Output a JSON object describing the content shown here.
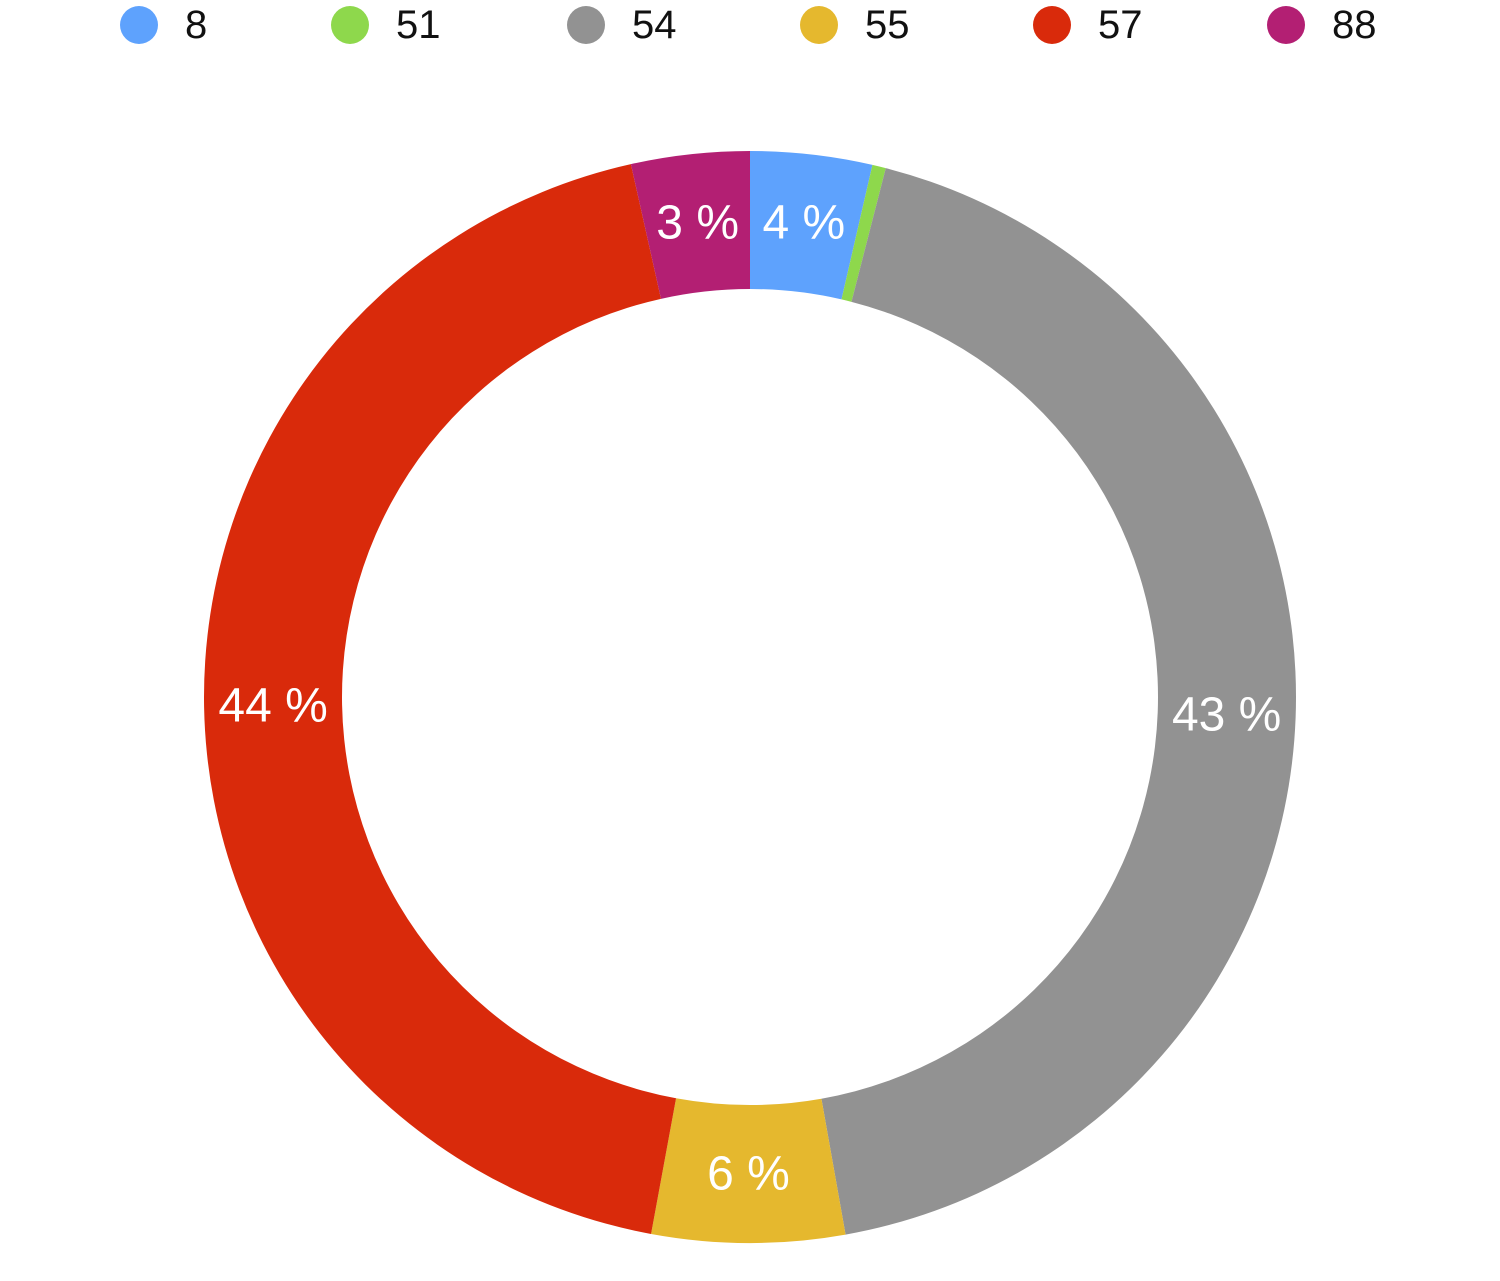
{
  "chart_data": {
    "type": "pie",
    "donut": true,
    "legend_position": "top",
    "categories": [
      "8",
      "51",
      "54",
      "55",
      "57",
      "88"
    ],
    "values": [
      3.6,
      0.4,
      43.2,
      5.7,
      43.6,
      3.5
    ],
    "data_labels": [
      "4 %",
      "",
      "43 %",
      "6 %",
      "44 %",
      "3 %"
    ],
    "colors": [
      "#5ea2fd",
      "#8ed84c",
      "#929292",
      "#e5b82e",
      "#d92a0b",
      "#b31f73"
    ]
  }
}
